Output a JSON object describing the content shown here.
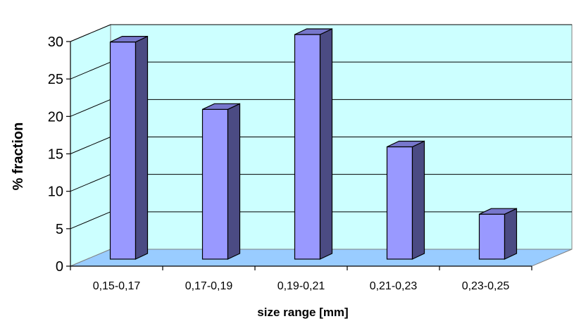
{
  "chart_data": {
    "type": "bar",
    "title": "",
    "xlabel": "size range [mm]",
    "ylabel": "% fraction",
    "categories": [
      "0,15-0,17",
      "0,17-0,19",
      "0,19-0,21",
      "0,21-0,23",
      "0,23-0,25"
    ],
    "values": [
      29,
      20,
      30,
      15,
      6
    ],
    "ylim": [
      0,
      30
    ],
    "yticks": [
      0,
      5,
      10,
      15,
      20,
      25,
      30
    ],
    "grid": true,
    "legend": "none",
    "three_d": true,
    "colors": {
      "bar_front": "#9999ff",
      "bar_side": "#4b4b83",
      "bar_top": "#7777cc",
      "back_wall": "#ccffff",
      "side_wall": "#ccffff",
      "floor": "#99ccff",
      "grid": "#000000"
    }
  }
}
